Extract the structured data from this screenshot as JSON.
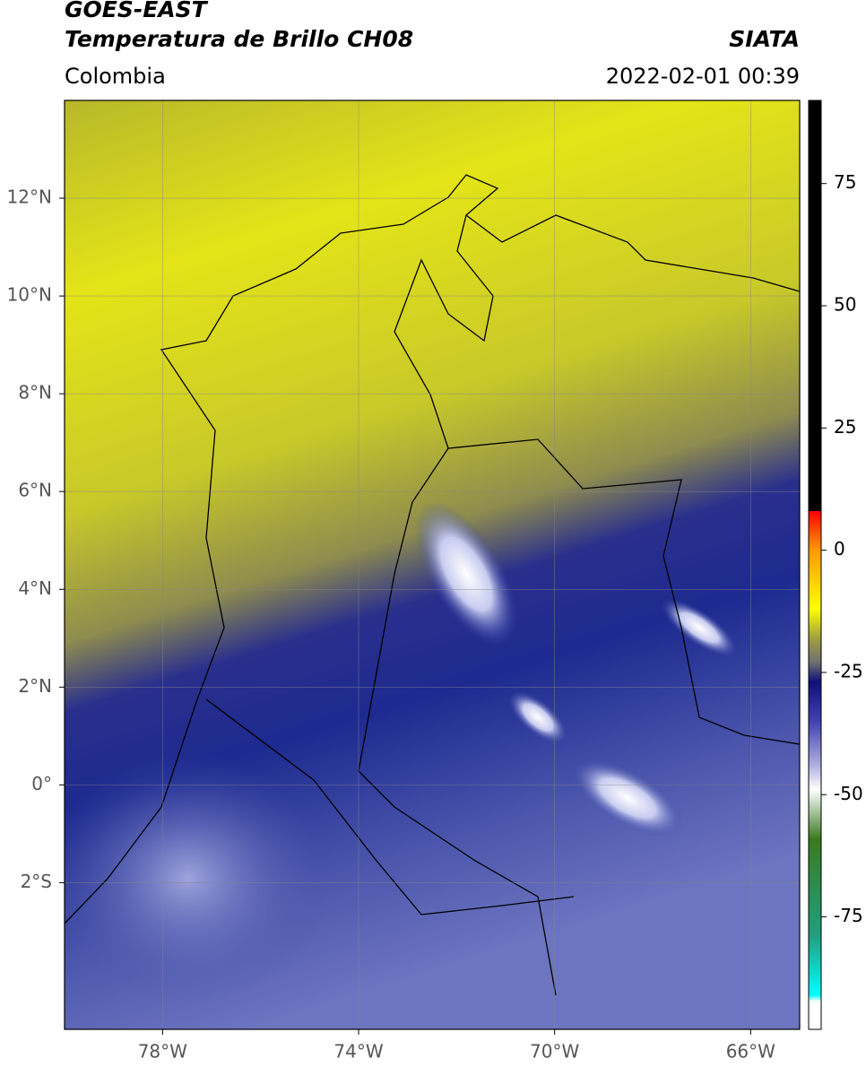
{
  "header": {
    "title": "GOES-EAST",
    "subtitle": "Temperatura de Brillo CH08",
    "source": "SIATA",
    "region": "Colombia",
    "datetime": "2022-02-01 00:39"
  },
  "map": {
    "xlim": [
      -80,
      -65
    ],
    "ylim": [
      -5,
      14
    ],
    "xticks": [
      {
        "value": -78,
        "label": "78°W"
      },
      {
        "value": -74,
        "label": "74°W"
      },
      {
        "value": -70,
        "label": "70°W"
      },
      {
        "value": -66,
        "label": "66°W"
      }
    ],
    "yticks": [
      {
        "value": 12,
        "label": "12°N"
      },
      {
        "value": 10,
        "label": "10°N"
      },
      {
        "value": 8,
        "label": "8°N"
      },
      {
        "value": 6,
        "label": "6°N"
      },
      {
        "value": 4,
        "label": "4°N"
      },
      {
        "value": 2,
        "label": "2°N"
      },
      {
        "value": 0,
        "label": "0°"
      },
      {
        "value": -2,
        "label": "2°S"
      }
    ],
    "grid": true
  },
  "colorbar": {
    "lim": [
      -98,
      92
    ],
    "ticks": [
      75,
      50,
      25,
      0,
      -25,
      -50,
      -75
    ]
  }
}
